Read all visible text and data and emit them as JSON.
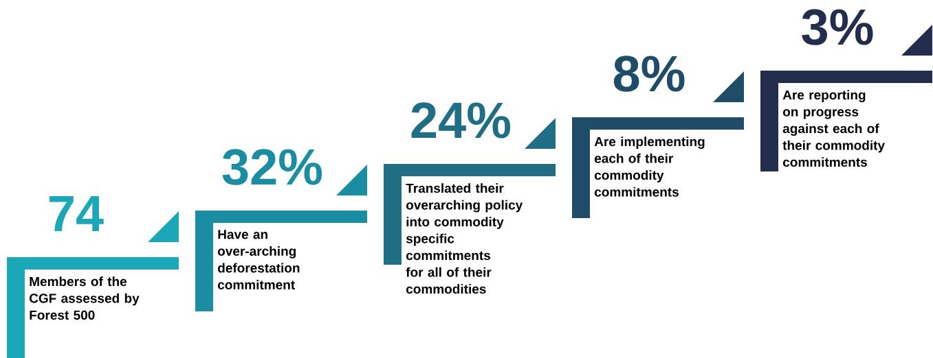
{
  "chart_data": {
    "type": "other",
    "categories": [
      "Members of the CGF assessed by Forest 500",
      "Have an over-arching deforestation commitment",
      "Translated their overarching policy into commodity specific commitments for all of their commodities",
      "Are implementing each of their commodity commitments",
      "Are reporting on progress against each of their commodity commitments"
    ],
    "values": [
      74,
      32,
      24,
      8,
      3
    ],
    "value_labels": [
      "74",
      "32%",
      "24%",
      "8%",
      "3%"
    ],
    "colors": [
      "#1aa8b9",
      "#1b8da2",
      "#1f6e86",
      "#1f4d69",
      "#232d4e"
    ]
  }
}
